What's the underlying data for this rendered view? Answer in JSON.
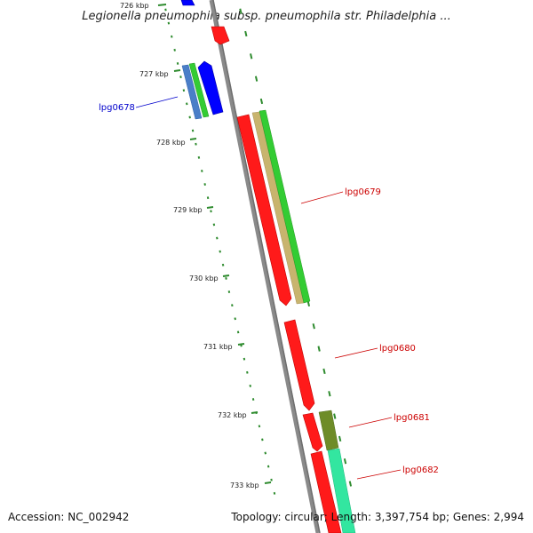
{
  "title": "Legionella pneumophila subsp. pneumophila str. Philadelphia ...",
  "footer": {
    "accession": "Accession: NC_002942",
    "summary": "Topology: circular; Length: 3,397,754 bp; Genes: 2,994"
  },
  "ticks": [
    {
      "label": "726 kbp"
    },
    {
      "label": "727 kbp"
    },
    {
      "label": "728 kbp"
    },
    {
      "label": "729 kbp"
    },
    {
      "label": "730 kbp"
    },
    {
      "label": "731 kbp"
    },
    {
      "label": "732 kbp"
    },
    {
      "label": "733 kbp"
    }
  ],
  "genes": [
    {
      "name": "lpg0678",
      "color": "#0000cc"
    },
    {
      "name": "lpg0679",
      "color": "#cc0000"
    },
    {
      "name": "lpg0680",
      "color": "#cc0000"
    },
    {
      "name": "lpg0681",
      "color": "#cc0000"
    },
    {
      "name": "lpg0682",
      "color": "#cc0000"
    }
  ],
  "colors": {
    "backbone": "#808080",
    "forward_cds": "#ff0000",
    "reverse_cds": "#0000ff",
    "gc_track": "#33cc33",
    "khaki_track": "#c8b46e",
    "olive_track": "#6e8c28",
    "teal_track": "#33e6a0",
    "steel_track": "#4a7ec8",
    "tick_dash": "#2e8b2e"
  }
}
